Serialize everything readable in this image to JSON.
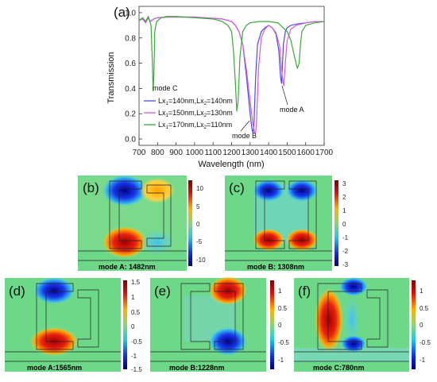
{
  "chart_data": [
    {
      "type": "line",
      "panel_label": "(a)",
      "xlabel": "Wavelength (nm)",
      "ylabel": "Transmission",
      "xlim": [
        700,
        1700
      ],
      "ylim": [
        -0.05,
        1.05
      ],
      "xticks": [
        "700",
        "800",
        "900",
        "1000",
        "1100",
        "1200",
        "1300",
        "1400",
        "1500",
        "1600",
        "1700"
      ],
      "yticks": [
        "0.0",
        "0.2",
        "0.4",
        "0.6",
        "0.8",
        "1.0"
      ],
      "legend_position": "lower-left",
      "series": [
        {
          "name": "Lx1=140nm,Lx2=140nm",
          "color": "#4a4af0",
          "x": [
            700,
            720,
            735,
            750,
            760,
            780,
            800,
            850,
            900,
            950,
            1000,
            1050,
            1100,
            1150,
            1200,
            1220,
            1240,
            1260,
            1280,
            1300,
            1310,
            1315,
            1320,
            1330,
            1340,
            1360,
            1380,
            1400,
            1420,
            1440,
            1455,
            1465,
            1470,
            1475,
            1480,
            1490,
            1500,
            1520,
            1550,
            1600,
            1650,
            1700
          ],
          "y": [
            0.94,
            0.95,
            0.92,
            0.96,
            0.93,
            0.95,
            0.96,
            0.965,
            0.965,
            0.965,
            0.965,
            0.96,
            0.955,
            0.95,
            0.93,
            0.9,
            0.85,
            0.75,
            0.5,
            0.2,
            0.08,
            0.05,
            0.1,
            0.5,
            0.75,
            0.85,
            0.88,
            0.9,
            0.88,
            0.83,
            0.7,
            0.48,
            0.44,
            0.6,
            0.75,
            0.85,
            0.88,
            0.9,
            0.91,
            0.92,
            0.93,
            0.93
          ]
        },
        {
          "name": "Lx1=150nm,Lx2=130nm",
          "color": "#d85ad8",
          "x": [
            700,
            720,
            735,
            750,
            760,
            780,
            800,
            850,
            900,
            950,
            1000,
            1050,
            1100,
            1150,
            1200,
            1220,
            1240,
            1260,
            1280,
            1300,
            1315,
            1325,
            1330,
            1335,
            1345,
            1360,
            1380,
            1400,
            1420,
            1440,
            1460,
            1470,
            1478,
            1482,
            1490,
            1500,
            1520,
            1550,
            1600,
            1650,
            1700
          ],
          "y": [
            0.94,
            0.95,
            0.92,
            0.96,
            0.93,
            0.95,
            0.96,
            0.965,
            0.965,
            0.965,
            0.965,
            0.96,
            0.955,
            0.95,
            0.93,
            0.9,
            0.85,
            0.75,
            0.55,
            0.3,
            0.12,
            0.05,
            0.05,
            0.15,
            0.55,
            0.8,
            0.87,
            0.9,
            0.88,
            0.84,
            0.73,
            0.55,
            0.45,
            0.42,
            0.6,
            0.78,
            0.87,
            0.9,
            0.92,
            0.93,
            0.93
          ]
        },
        {
          "name": "Lx1=170nm,Lx2=110nm",
          "color": "#3aa83a",
          "x": [
            700,
            720,
            735,
            750,
            765,
            772,
            776,
            780,
            785,
            795,
            820,
            850,
            900,
            950,
            1000,
            1050,
            1100,
            1150,
            1180,
            1200,
            1210,
            1220,
            1228,
            1235,
            1245,
            1260,
            1280,
            1300,
            1350,
            1400,
            1450,
            1500,
            1520,
            1540,
            1555,
            1565,
            1572,
            1580,
            1600,
            1650,
            1700
          ],
          "y": [
            0.94,
            0.96,
            0.93,
            0.97,
            0.9,
            0.6,
            0.38,
            0.5,
            0.85,
            0.93,
            0.96,
            0.97,
            0.97,
            0.965,
            0.96,
            0.955,
            0.95,
            0.93,
            0.9,
            0.85,
            0.7,
            0.45,
            0.22,
            0.3,
            0.65,
            0.85,
            0.9,
            0.92,
            0.93,
            0.93,
            0.92,
            0.85,
            0.78,
            0.65,
            0.56,
            0.6,
            0.75,
            0.85,
            0.9,
            0.92,
            0.93
          ]
        }
      ],
      "annotations": [
        {
          "text": "mode C",
          "x": 780,
          "y": 0.38
        },
        {
          "text": "mode B",
          "x": 1228,
          "y": 0.2
        },
        {
          "text": "mode A",
          "x": 1565,
          "y": 0.56
        }
      ]
    },
    {
      "type": "heatmap",
      "panels": [
        {
          "label": "(b)",
          "caption": "mode A: 1482nm",
          "colorbar_ticks": [
            "10",
            "5",
            "0",
            "-5",
            "-10"
          ]
        },
        {
          "label": "(c)",
          "caption": "mode B: 1308nm",
          "colorbar_ticks": [
            "3",
            "2",
            "1",
            "0",
            "-1",
            "-2",
            "-3"
          ]
        },
        {
          "label": "(d)",
          "caption": "mode A:1565nm",
          "colorbar_ticks": [
            "1.5",
            "1",
            "0.5",
            "0",
            "-0.5",
            "-1",
            "-1.5"
          ]
        },
        {
          "label": "(e)",
          "caption": "mode B:1228nm",
          "colorbar_ticks": [
            "1",
            "0.5",
            "0",
            "-0.5",
            "-1"
          ]
        },
        {
          "label": "(f)",
          "caption": "mode C:780nm",
          "colorbar_ticks": [
            "1",
            "0.5",
            "0",
            "-0.5",
            "-1"
          ]
        }
      ]
    }
  ]
}
